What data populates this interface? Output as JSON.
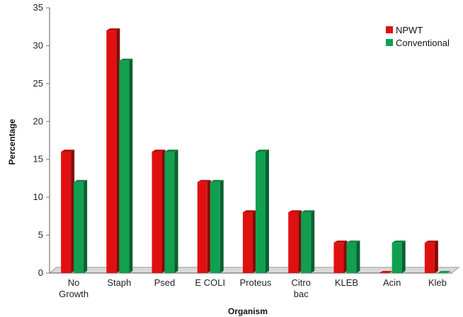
{
  "chart_data": {
    "type": "bar",
    "title": "",
    "xlabel": "Organism",
    "ylabel": "Percentage",
    "ylim": [
      0,
      35
    ],
    "yticks": [
      0,
      5,
      10,
      15,
      20,
      25,
      30,
      35
    ],
    "grid": false,
    "legend_position": "top-right",
    "categories": [
      [
        "No",
        "Growth"
      ],
      [
        "Staph"
      ],
      [
        "Psed"
      ],
      [
        "E COLI"
      ],
      [
        "Proteus"
      ],
      [
        "Citro",
        "bac"
      ],
      [
        "KLEB"
      ],
      [
        "Acin"
      ],
      [
        "Kleb"
      ]
    ],
    "series": [
      {
        "name": "NPWT",
        "color": "#e01010",
        "values": [
          16,
          32,
          16,
          12,
          8,
          8,
          4,
          0,
          4
        ]
      },
      {
        "name": "Conventional",
        "color": "#10a050",
        "values": [
          12,
          28,
          16,
          12,
          16,
          8,
          4,
          4,
          0
        ]
      }
    ]
  }
}
